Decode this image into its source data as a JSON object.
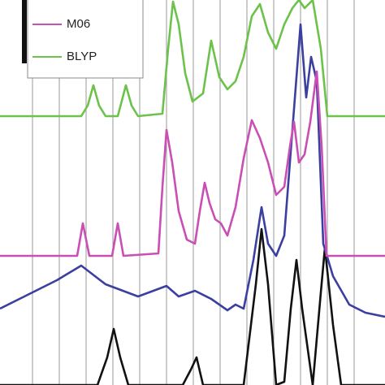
{
  "chart_data": {
    "type": "line",
    "xlim": [
      0,
      474
    ],
    "ylim": [
      0,
      474
    ],
    "xticks": [
      40,
      73,
      106,
      139,
      172,
      205,
      238,
      271,
      304,
      337,
      370,
      403,
      436
    ],
    "grid": true,
    "series": [
      {
        "name": "M06",
        "color": "#c94fb4",
        "x": [
          0,
          95,
          102,
          110,
          138,
          145,
          152,
          195,
          200,
          205,
          212,
          220,
          230,
          240,
          246,
          252,
          258,
          265,
          272,
          280,
          290,
          300,
          310,
          320,
          330,
          340,
          350,
          357,
          362,
          368,
          375,
          382,
          390,
          396,
          402,
          474
        ],
        "values": [
          159,
          159,
          199,
          159,
          159,
          199,
          159,
          162,
          244,
          314,
          274,
          214,
          179,
          174,
          214,
          249,
          224,
          204,
          199,
          184,
          219,
          279,
          326,
          304,
          274,
          234,
          244,
          294,
          324,
          274,
          284,
          324,
          386,
          294,
          159,
          159
        ]
      },
      {
        "name": "BLYP",
        "color": "#6cc24a",
        "x": [
          0,
          100,
          108,
          115,
          122,
          130,
          145,
          155,
          162,
          170,
          200,
          207,
          213,
          220,
          228,
          237,
          250,
          260,
          270,
          280,
          290,
          300,
          310,
          320,
          330,
          340,
          350,
          360,
          368,
          375,
          385,
          395,
          403,
          474
        ],
        "values": [
          331,
          331,
          344,
          369,
          344,
          331,
          331,
          369,
          344,
          331,
          334,
          414,
          472,
          444,
          384,
          349,
          359,
          424,
          379,
          364,
          374,
          404,
          454,
          469,
          434,
          414,
          444,
          464,
          474,
          464,
          474,
          414,
          331,
          331
        ]
      },
      {
        "color": "#3b3fa0",
        "x": [
          0,
          30,
          70,
          100,
          130,
          170,
          205,
          220,
          240,
          260,
          280,
          290,
          300,
          312,
          322,
          330,
          340,
          350,
          360,
          370,
          377,
          383,
          390,
          398,
          410,
          430,
          450,
          474
        ],
        "values": [
          94,
          109,
          129,
          147,
          124,
          109,
          122,
          109,
          116,
          106,
          92,
          99,
          94,
          154,
          219,
          174,
          159,
          184,
          314,
          444,
          354,
          404,
          374,
          174,
          134,
          99,
          89,
          84
        ]
      },
      {
        "color": "#111111",
        "x": [
          0,
          120,
          132,
          140,
          148,
          158,
          225,
          235,
          242,
          250,
          300,
          315,
          322,
          330,
          340,
          350,
          358,
          365,
          372,
          385,
          395,
          400,
          410,
          420,
          474
        ],
        "values": [
          0,
          0,
          34,
          69,
          34,
          0,
          0,
          19,
          34,
          0,
          0,
          124,
          192,
          124,
          0,
          4,
          94,
          154,
          94,
          0,
          114,
          169,
          74,
          0,
          0
        ]
      }
    ]
  }
}
